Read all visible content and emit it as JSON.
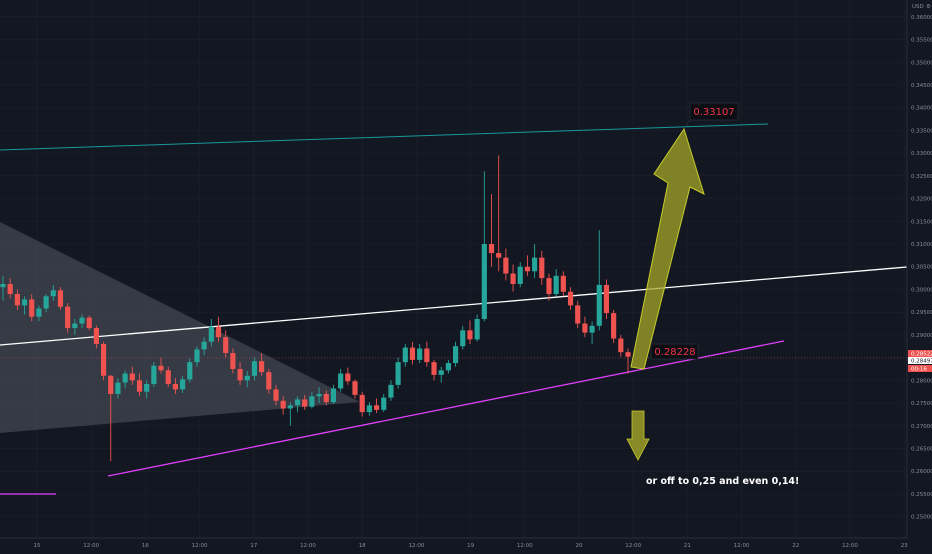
{
  "chart_data": {
    "type": "candlestick",
    "currency": "USD",
    "currency_menu_glyph": "⚙",
    "y_axis": {
      "range": [
        0.2453,
        0.3637
      ],
      "ticks": [
        "0.36000",
        "0.35500",
        "0.35000",
        "0.34500",
        "0.34000",
        "0.33500",
        "0.33000",
        "0.32500",
        "0.32000",
        "0.31500",
        "0.31000",
        "0.30500",
        "0.30000",
        "0.29500",
        "0.29000",
        "0.28500",
        "0.28000",
        "0.27500",
        "0.27000",
        "0.26500",
        "0.26000",
        "0.25500",
        "0.25000"
      ]
    },
    "x_axis": {
      "ticks": [
        "15",
        "12:00",
        "16",
        "12:00",
        "17",
        "12:00",
        "18",
        "12:00",
        "19",
        "12:00",
        "20",
        "12:00",
        "21",
        "12:00",
        "22",
        "12:00",
        "23"
      ]
    },
    "price_tags": [
      {
        "value": "0.28522",
        "kind": "last-price"
      },
      {
        "value": "0.28497",
        "kind": "bid"
      },
      {
        "value": "00:16",
        "kind": "countdown"
      }
    ],
    "annotations": {
      "target_price": "0.33107",
      "support_price": "0.28228",
      "note": "or off to 0,25 and even  0,14!"
    },
    "colors": {
      "up_candle": "#26a69a",
      "down_candle": "#ef5350",
      "resistance_line": "#1a9a9a",
      "middle_line": "#ffffff",
      "support_line": "#e040fb",
      "triangle_fill": "#787b86",
      "arrow_fill": "#a5a728",
      "label_text": "#f23645"
    },
    "candles": [
      {
        "o": 0.3005,
        "h": 0.303,
        "l": 0.2975,
        "c": 0.3012
      },
      {
        "o": 0.3012,
        "h": 0.3025,
        "l": 0.298,
        "c": 0.299
      },
      {
        "o": 0.299,
        "h": 0.3,
        "l": 0.2955,
        "c": 0.2965
      },
      {
        "o": 0.2965,
        "h": 0.2985,
        "l": 0.2945,
        "c": 0.2978
      },
      {
        "o": 0.2978,
        "h": 0.299,
        "l": 0.293,
        "c": 0.294
      },
      {
        "o": 0.294,
        "h": 0.2965,
        "l": 0.293,
        "c": 0.2958
      },
      {
        "o": 0.2958,
        "h": 0.299,
        "l": 0.295,
        "c": 0.2985
      },
      {
        "o": 0.2985,
        "h": 0.301,
        "l": 0.2975,
        "c": 0.2998
      },
      {
        "o": 0.2998,
        "h": 0.3005,
        "l": 0.2955,
        "c": 0.2962
      },
      {
        "o": 0.2962,
        "h": 0.297,
        "l": 0.2905,
        "c": 0.2915
      },
      {
        "o": 0.2915,
        "h": 0.2935,
        "l": 0.29,
        "c": 0.2925
      },
      {
        "o": 0.2925,
        "h": 0.2945,
        "l": 0.2915,
        "c": 0.2938
      },
      {
        "o": 0.2938,
        "h": 0.2942,
        "l": 0.291,
        "c": 0.2915
      },
      {
        "o": 0.2915,
        "h": 0.292,
        "l": 0.287,
        "c": 0.288
      },
      {
        "o": 0.288,
        "h": 0.2885,
        "l": 0.28,
        "c": 0.281
      },
      {
        "o": 0.281,
        "h": 0.2812,
        "l": 0.2622,
        "c": 0.277
      },
      {
        "o": 0.277,
        "h": 0.2805,
        "l": 0.276,
        "c": 0.2795
      },
      {
        "o": 0.2795,
        "h": 0.2822,
        "l": 0.2782,
        "c": 0.2815
      },
      {
        "o": 0.2815,
        "h": 0.283,
        "l": 0.279,
        "c": 0.28
      },
      {
        "o": 0.28,
        "h": 0.2815,
        "l": 0.2765,
        "c": 0.2775
      },
      {
        "o": 0.2775,
        "h": 0.28,
        "l": 0.276,
        "c": 0.2792
      },
      {
        "o": 0.2792,
        "h": 0.284,
        "l": 0.2785,
        "c": 0.2832
      },
      {
        "o": 0.2832,
        "h": 0.285,
        "l": 0.2815,
        "c": 0.2822
      },
      {
        "o": 0.2822,
        "h": 0.283,
        "l": 0.2785,
        "c": 0.2792
      },
      {
        "o": 0.2792,
        "h": 0.2805,
        "l": 0.277,
        "c": 0.278
      },
      {
        "o": 0.278,
        "h": 0.281,
        "l": 0.2772,
        "c": 0.2802
      },
      {
        "o": 0.2802,
        "h": 0.2848,
        "l": 0.2795,
        "c": 0.284
      },
      {
        "o": 0.284,
        "h": 0.2875,
        "l": 0.283,
        "c": 0.2868
      },
      {
        "o": 0.2868,
        "h": 0.2895,
        "l": 0.2855,
        "c": 0.2885
      },
      {
        "o": 0.2885,
        "h": 0.2935,
        "l": 0.2875,
        "c": 0.2918
      },
      {
        "o": 0.2918,
        "h": 0.294,
        "l": 0.2885,
        "c": 0.2895
      },
      {
        "o": 0.2895,
        "h": 0.291,
        "l": 0.285,
        "c": 0.286
      },
      {
        "o": 0.286,
        "h": 0.287,
        "l": 0.2815,
        "c": 0.2825
      },
      {
        "o": 0.2825,
        "h": 0.284,
        "l": 0.279,
        "c": 0.28
      },
      {
        "o": 0.28,
        "h": 0.282,
        "l": 0.2785,
        "c": 0.281
      },
      {
        "o": 0.281,
        "h": 0.285,
        "l": 0.28,
        "c": 0.2842
      },
      {
        "o": 0.2842,
        "h": 0.286,
        "l": 0.281,
        "c": 0.2818
      },
      {
        "o": 0.2818,
        "h": 0.2825,
        "l": 0.277,
        "c": 0.278
      },
      {
        "o": 0.278,
        "h": 0.279,
        "l": 0.2745,
        "c": 0.2755
      },
      {
        "o": 0.2755,
        "h": 0.2765,
        "l": 0.2725,
        "c": 0.2738
      },
      {
        "o": 0.2738,
        "h": 0.2752,
        "l": 0.27,
        "c": 0.2745
      },
      {
        "o": 0.2745,
        "h": 0.2765,
        "l": 0.273,
        "c": 0.2758
      },
      {
        "o": 0.2758,
        "h": 0.2768,
        "l": 0.2735,
        "c": 0.2742
      },
      {
        "o": 0.2742,
        "h": 0.2775,
        "l": 0.2738,
        "c": 0.2765
      },
      {
        "o": 0.2765,
        "h": 0.2785,
        "l": 0.275,
        "c": 0.277
      },
      {
        "o": 0.277,
        "h": 0.2778,
        "l": 0.2745,
        "c": 0.2752
      },
      {
        "o": 0.2752,
        "h": 0.279,
        "l": 0.2748,
        "c": 0.2782
      },
      {
        "o": 0.2782,
        "h": 0.2825,
        "l": 0.2775,
        "c": 0.2815
      },
      {
        "o": 0.2815,
        "h": 0.2828,
        "l": 0.279,
        "c": 0.2798
      },
      {
        "o": 0.2798,
        "h": 0.2802,
        "l": 0.276,
        "c": 0.2768
      },
      {
        "o": 0.2768,
        "h": 0.2775,
        "l": 0.272,
        "c": 0.273
      },
      {
        "o": 0.273,
        "h": 0.2752,
        "l": 0.2722,
        "c": 0.2745
      },
      {
        "o": 0.2745,
        "h": 0.276,
        "l": 0.2728,
        "c": 0.2735
      },
      {
        "o": 0.2735,
        "h": 0.277,
        "l": 0.273,
        "c": 0.2762
      },
      {
        "o": 0.2762,
        "h": 0.28,
        "l": 0.2755,
        "c": 0.279
      },
      {
        "o": 0.279,
        "h": 0.285,
        "l": 0.2782,
        "c": 0.284
      },
      {
        "o": 0.284,
        "h": 0.288,
        "l": 0.283,
        "c": 0.2872
      },
      {
        "o": 0.2872,
        "h": 0.2885,
        "l": 0.2835,
        "c": 0.2845
      },
      {
        "o": 0.2845,
        "h": 0.288,
        "l": 0.2838,
        "c": 0.287
      },
      {
        "o": 0.287,
        "h": 0.2885,
        "l": 0.283,
        "c": 0.284
      },
      {
        "o": 0.284,
        "h": 0.2845,
        "l": 0.28,
        "c": 0.2812
      },
      {
        "o": 0.2812,
        "h": 0.283,
        "l": 0.2795,
        "c": 0.2822
      },
      {
        "o": 0.2822,
        "h": 0.2845,
        "l": 0.2815,
        "c": 0.2838
      },
      {
        "o": 0.2838,
        "h": 0.2885,
        "l": 0.283,
        "c": 0.2875
      },
      {
        "o": 0.2875,
        "h": 0.292,
        "l": 0.2868,
        "c": 0.291
      },
      {
        "o": 0.291,
        "h": 0.2932,
        "l": 0.288,
        "c": 0.289
      },
      {
        "o": 0.289,
        "h": 0.2945,
        "l": 0.2885,
        "c": 0.2935
      },
      {
        "o": 0.2935,
        "h": 0.326,
        "l": 0.293,
        "c": 0.31
      },
      {
        "o": 0.31,
        "h": 0.321,
        "l": 0.305,
        "c": 0.308
      },
      {
        "o": 0.308,
        "h": 0.3295,
        "l": 0.304,
        "c": 0.307
      },
      {
        "o": 0.307,
        "h": 0.309,
        "l": 0.302,
        "c": 0.3035
      },
      {
        "o": 0.3035,
        "h": 0.3055,
        "l": 0.2995,
        "c": 0.3012
      },
      {
        "o": 0.3012,
        "h": 0.306,
        "l": 0.3005,
        "c": 0.305
      },
      {
        "o": 0.305,
        "h": 0.3075,
        "l": 0.303,
        "c": 0.304
      },
      {
        "o": 0.304,
        "h": 0.31,
        "l": 0.3025,
        "c": 0.307
      },
      {
        "o": 0.307,
        "h": 0.3085,
        "l": 0.301,
        "c": 0.3025
      },
      {
        "o": 0.3025,
        "h": 0.3035,
        "l": 0.2975,
        "c": 0.299
      },
      {
        "o": 0.299,
        "h": 0.3045,
        "l": 0.2985,
        "c": 0.303
      },
      {
        "o": 0.303,
        "h": 0.304,
        "l": 0.2985,
        "c": 0.2995
      },
      {
        "o": 0.2995,
        "h": 0.3005,
        "l": 0.2955,
        "c": 0.2965
      },
      {
        "o": 0.2965,
        "h": 0.2975,
        "l": 0.2915,
        "c": 0.2925
      },
      {
        "o": 0.2925,
        "h": 0.294,
        "l": 0.2895,
        "c": 0.2905
      },
      {
        "o": 0.2905,
        "h": 0.293,
        "l": 0.288,
        "c": 0.292
      },
      {
        "o": 0.292,
        "h": 0.313,
        "l": 0.291,
        "c": 0.301
      },
      {
        "o": 0.301,
        "h": 0.3022,
        "l": 0.2935,
        "c": 0.2948
      },
      {
        "o": 0.2948,
        "h": 0.2955,
        "l": 0.2882,
        "c": 0.2892
      },
      {
        "o": 0.2892,
        "h": 0.29,
        "l": 0.2852,
        "c": 0.2862
      },
      {
        "o": 0.2862,
        "h": 0.287,
        "l": 0.2815,
        "c": 0.2852
      }
    ]
  }
}
